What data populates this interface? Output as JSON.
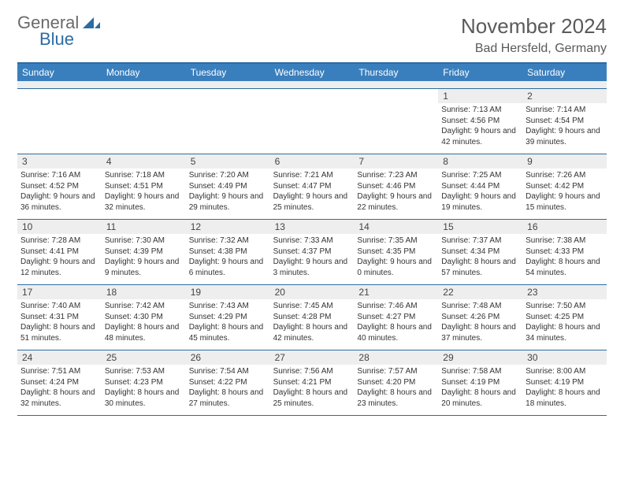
{
  "logo": {
    "text1": "General",
    "text2": "Blue",
    "icon_color": "#2d6ca2"
  },
  "title": "November 2024",
  "location": "Bad Hersfeld, Germany",
  "header_bg": "#3a7fbd",
  "border_color": "#2d6ca2",
  "daynum_bg": "#eeeeee",
  "days_of_week": [
    "Sunday",
    "Monday",
    "Tuesday",
    "Wednesday",
    "Thursday",
    "Friday",
    "Saturday"
  ],
  "weeks": [
    [
      {
        "n": "",
        "sr": "",
        "ss": "",
        "dl": ""
      },
      {
        "n": "",
        "sr": "",
        "ss": "",
        "dl": ""
      },
      {
        "n": "",
        "sr": "",
        "ss": "",
        "dl": ""
      },
      {
        "n": "",
        "sr": "",
        "ss": "",
        "dl": ""
      },
      {
        "n": "",
        "sr": "",
        "ss": "",
        "dl": ""
      },
      {
        "n": "1",
        "sr": "Sunrise: 7:13 AM",
        "ss": "Sunset: 4:56 PM",
        "dl": "Daylight: 9 hours and 42 minutes."
      },
      {
        "n": "2",
        "sr": "Sunrise: 7:14 AM",
        "ss": "Sunset: 4:54 PM",
        "dl": "Daylight: 9 hours and 39 minutes."
      }
    ],
    [
      {
        "n": "3",
        "sr": "Sunrise: 7:16 AM",
        "ss": "Sunset: 4:52 PM",
        "dl": "Daylight: 9 hours and 36 minutes."
      },
      {
        "n": "4",
        "sr": "Sunrise: 7:18 AM",
        "ss": "Sunset: 4:51 PM",
        "dl": "Daylight: 9 hours and 32 minutes."
      },
      {
        "n": "5",
        "sr": "Sunrise: 7:20 AM",
        "ss": "Sunset: 4:49 PM",
        "dl": "Daylight: 9 hours and 29 minutes."
      },
      {
        "n": "6",
        "sr": "Sunrise: 7:21 AM",
        "ss": "Sunset: 4:47 PM",
        "dl": "Daylight: 9 hours and 25 minutes."
      },
      {
        "n": "7",
        "sr": "Sunrise: 7:23 AM",
        "ss": "Sunset: 4:46 PM",
        "dl": "Daylight: 9 hours and 22 minutes."
      },
      {
        "n": "8",
        "sr": "Sunrise: 7:25 AM",
        "ss": "Sunset: 4:44 PM",
        "dl": "Daylight: 9 hours and 19 minutes."
      },
      {
        "n": "9",
        "sr": "Sunrise: 7:26 AM",
        "ss": "Sunset: 4:42 PM",
        "dl": "Daylight: 9 hours and 15 minutes."
      }
    ],
    [
      {
        "n": "10",
        "sr": "Sunrise: 7:28 AM",
        "ss": "Sunset: 4:41 PM",
        "dl": "Daylight: 9 hours and 12 minutes."
      },
      {
        "n": "11",
        "sr": "Sunrise: 7:30 AM",
        "ss": "Sunset: 4:39 PM",
        "dl": "Daylight: 9 hours and 9 minutes."
      },
      {
        "n": "12",
        "sr": "Sunrise: 7:32 AM",
        "ss": "Sunset: 4:38 PM",
        "dl": "Daylight: 9 hours and 6 minutes."
      },
      {
        "n": "13",
        "sr": "Sunrise: 7:33 AM",
        "ss": "Sunset: 4:37 PM",
        "dl": "Daylight: 9 hours and 3 minutes."
      },
      {
        "n": "14",
        "sr": "Sunrise: 7:35 AM",
        "ss": "Sunset: 4:35 PM",
        "dl": "Daylight: 9 hours and 0 minutes."
      },
      {
        "n": "15",
        "sr": "Sunrise: 7:37 AM",
        "ss": "Sunset: 4:34 PM",
        "dl": "Daylight: 8 hours and 57 minutes."
      },
      {
        "n": "16",
        "sr": "Sunrise: 7:38 AM",
        "ss": "Sunset: 4:33 PM",
        "dl": "Daylight: 8 hours and 54 minutes."
      }
    ],
    [
      {
        "n": "17",
        "sr": "Sunrise: 7:40 AM",
        "ss": "Sunset: 4:31 PM",
        "dl": "Daylight: 8 hours and 51 minutes."
      },
      {
        "n": "18",
        "sr": "Sunrise: 7:42 AM",
        "ss": "Sunset: 4:30 PM",
        "dl": "Daylight: 8 hours and 48 minutes."
      },
      {
        "n": "19",
        "sr": "Sunrise: 7:43 AM",
        "ss": "Sunset: 4:29 PM",
        "dl": "Daylight: 8 hours and 45 minutes."
      },
      {
        "n": "20",
        "sr": "Sunrise: 7:45 AM",
        "ss": "Sunset: 4:28 PM",
        "dl": "Daylight: 8 hours and 42 minutes."
      },
      {
        "n": "21",
        "sr": "Sunrise: 7:46 AM",
        "ss": "Sunset: 4:27 PM",
        "dl": "Daylight: 8 hours and 40 minutes."
      },
      {
        "n": "22",
        "sr": "Sunrise: 7:48 AM",
        "ss": "Sunset: 4:26 PM",
        "dl": "Daylight: 8 hours and 37 minutes."
      },
      {
        "n": "23",
        "sr": "Sunrise: 7:50 AM",
        "ss": "Sunset: 4:25 PM",
        "dl": "Daylight: 8 hours and 34 minutes."
      }
    ],
    [
      {
        "n": "24",
        "sr": "Sunrise: 7:51 AM",
        "ss": "Sunset: 4:24 PM",
        "dl": "Daylight: 8 hours and 32 minutes."
      },
      {
        "n": "25",
        "sr": "Sunrise: 7:53 AM",
        "ss": "Sunset: 4:23 PM",
        "dl": "Daylight: 8 hours and 30 minutes."
      },
      {
        "n": "26",
        "sr": "Sunrise: 7:54 AM",
        "ss": "Sunset: 4:22 PM",
        "dl": "Daylight: 8 hours and 27 minutes."
      },
      {
        "n": "27",
        "sr": "Sunrise: 7:56 AM",
        "ss": "Sunset: 4:21 PM",
        "dl": "Daylight: 8 hours and 25 minutes."
      },
      {
        "n": "28",
        "sr": "Sunrise: 7:57 AM",
        "ss": "Sunset: 4:20 PM",
        "dl": "Daylight: 8 hours and 23 minutes."
      },
      {
        "n": "29",
        "sr": "Sunrise: 7:58 AM",
        "ss": "Sunset: 4:19 PM",
        "dl": "Daylight: 8 hours and 20 minutes."
      },
      {
        "n": "30",
        "sr": "Sunrise: 8:00 AM",
        "ss": "Sunset: 4:19 PM",
        "dl": "Daylight: 8 hours and 18 minutes."
      }
    ]
  ]
}
